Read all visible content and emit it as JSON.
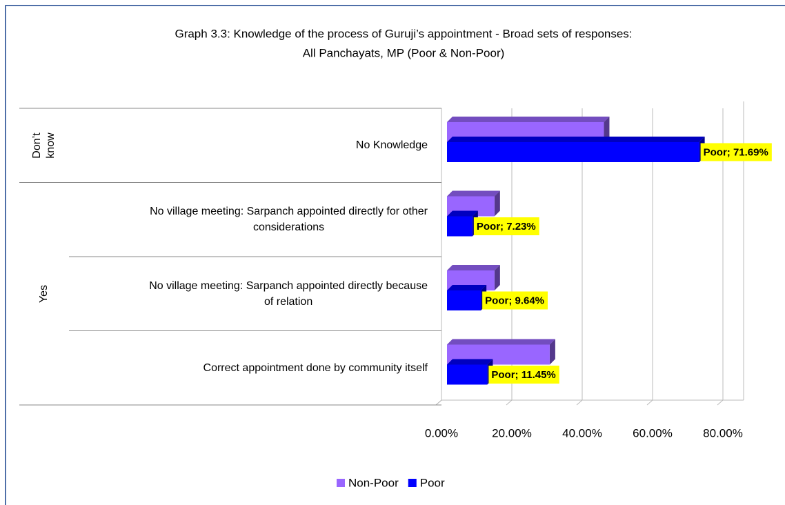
{
  "chart_data": {
    "type": "bar",
    "orientation": "horizontal",
    "title": [
      "Graph 3.3: Knowledge of the process of Guruji’s appointment - Broad sets of responses:",
      "All Panchayats, MP (Poor & Non-Poor)"
    ],
    "categories": [
      [
        "No Knowledge"
      ],
      [
        "No village meeting: Sarpanch appointed directly for other",
        "considerations"
      ],
      [
        "No village meeting: Sarpanch appointed directly because",
        "of relation"
      ],
      [
        "Correct appointment done by community itself"
      ]
    ],
    "groups": [
      "Don’t know",
      "Yes",
      "Yes",
      "Yes"
    ],
    "series": [
      {
        "name": "Non-Poor",
        "color": "#9966ff",
        "values": [
          44.6,
          13.5,
          13.5,
          29.2
        ]
      },
      {
        "name": "Poor",
        "color": "#0000ff",
        "values": [
          71.69,
          7.23,
          9.64,
          11.45
        ],
        "value_labels": [
          "Poor; 71.69%",
          "Poor; 7.23%",
          "Poor; 9.64%",
          "Poor; 11.45%"
        ]
      }
    ],
    "xlim": [
      0,
      80
    ],
    "xticks": [
      {
        "value": 0,
        "label": "0.00%"
      },
      {
        "value": 20,
        "label": "20.00%"
      },
      {
        "value": 40,
        "label": "40.00%"
      },
      {
        "value": 60,
        "label": "60.00%"
      },
      {
        "value": 80,
        "label": "80.00%"
      }
    ],
    "grid": true,
    "legend": "bottom"
  }
}
